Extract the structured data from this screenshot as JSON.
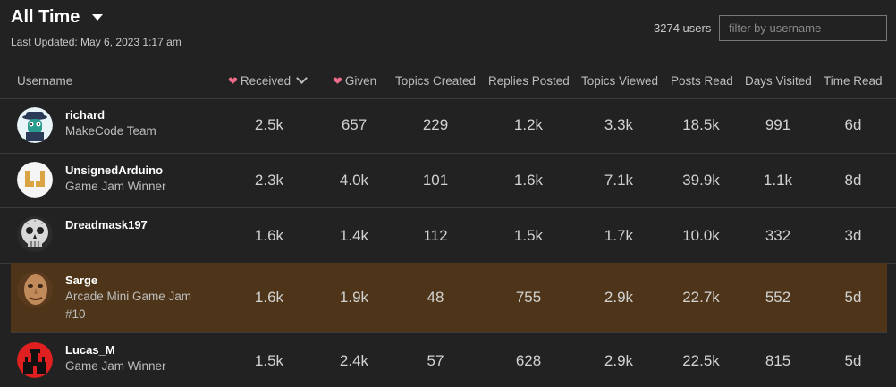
{
  "period": {
    "label": "All Time"
  },
  "last_updated": "Last Updated: May 6, 2023 1:17 am",
  "users_count": "3274 users",
  "filter": {
    "placeholder": "filter by username"
  },
  "columns": {
    "username": "Username",
    "received": "Received",
    "given": "Given",
    "topics_created": "Topics Created",
    "replies_posted": "Replies Posted",
    "topics_viewed": "Topics Viewed",
    "posts_read": "Posts Read",
    "days_visited": "Days Visited",
    "time_read": "Time Read"
  },
  "rows": [
    {
      "username": "richard",
      "title": "MakeCode Team",
      "received": "2.5k",
      "given": "657",
      "topics_created": "229",
      "replies_posted": "1.2k",
      "topics_viewed": "3.3k",
      "posts_read": "18.5k",
      "days_visited": "991",
      "time_read": "6d"
    },
    {
      "username": "UnsignedArduino",
      "title": "Game Jam Winner",
      "received": "2.3k",
      "given": "4.0k",
      "topics_created": "101",
      "replies_posted": "1.6k",
      "topics_viewed": "7.1k",
      "posts_read": "39.9k",
      "days_visited": "1.1k",
      "time_read": "8d"
    },
    {
      "username": "Dreadmask197",
      "title": "",
      "received": "1.6k",
      "given": "1.4k",
      "topics_created": "112",
      "replies_posted": "1.5k",
      "topics_viewed": "1.7k",
      "posts_read": "10.0k",
      "days_visited": "332",
      "time_read": "3d"
    },
    {
      "username": "Sarge",
      "title": "Arcade Mini Game Jam #10",
      "received": "1.6k",
      "given": "1.9k",
      "topics_created": "48",
      "replies_posted": "755",
      "topics_viewed": "2.9k",
      "posts_read": "22.7k",
      "days_visited": "552",
      "time_read": "5d"
    },
    {
      "username": "Lucas_M",
      "title": "Game Jam Winner",
      "received": "1.5k",
      "given": "2.4k",
      "topics_created": "57",
      "replies_posted": "628",
      "topics_viewed": "2.9k",
      "posts_read": "22.5k",
      "days_visited": "815",
      "time_read": "5d"
    }
  ]
}
